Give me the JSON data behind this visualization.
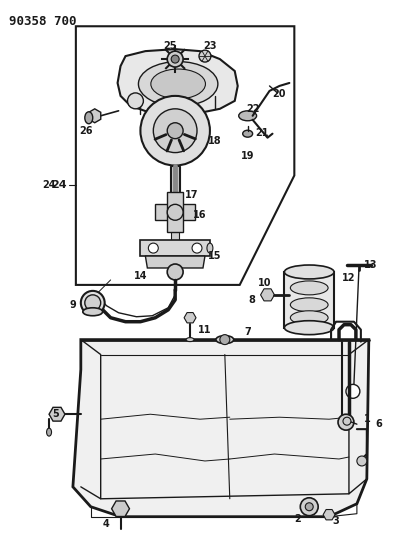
{
  "title": "90358 700",
  "bg": "#ffffff",
  "lc": "#1a1a1a",
  "fig_w": 3.98,
  "fig_h": 5.33,
  "dpi": 100
}
